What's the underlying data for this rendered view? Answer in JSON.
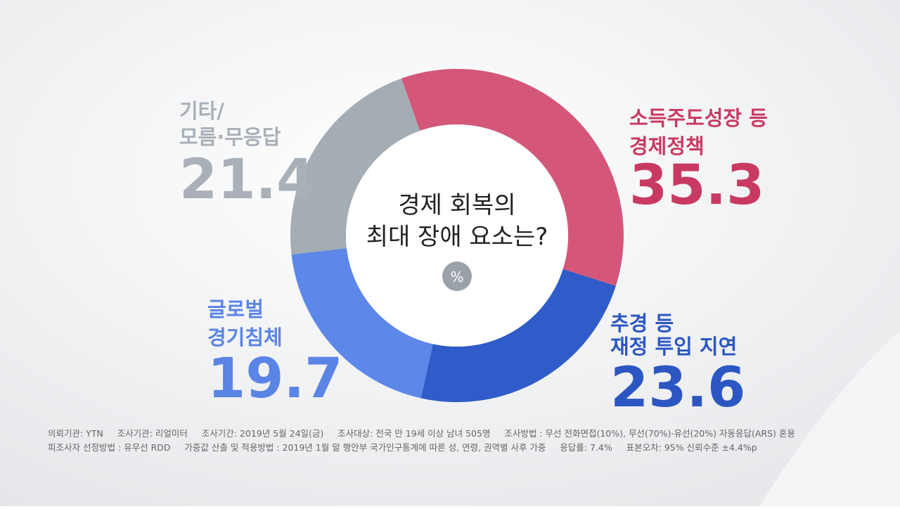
{
  "chart_data": {
    "type": "donut",
    "title": [
      "경제 회복의",
      "최대 장애 요소는?"
    ],
    "unit": "%",
    "categories": [
      [
        "소득주도성장 등",
        "경제정책"
      ],
      [
        "추경 등",
        "재정 투입 지연"
      ],
      [
        "글로벌",
        "경기침체"
      ],
      [
        "기타/",
        "모름·무응답"
      ]
    ],
    "values": [
      35.3,
      23.6,
      19.7,
      21.4
    ],
    "colors": [
      "#d4577a",
      "#2f5cc8",
      "#5d87e8",
      "#a4acb4"
    ],
    "label_colors": [
      "#c93a62",
      "#2c57c2",
      "#5a84e6",
      "#a9b0b8"
    ],
    "notes": [
      "의뢰기관: YTN     조사기관: 리얼미터     조사기간: 2019년 5월 24일(금)     조사대상: 전국 만 19세 이상 남녀 505명     조사방법 : 무선 전화면접(10%), 무선(70%)·유선(20%) 자동응답(ARS) 혼용",
      "피조사자 선정방법 : 유무선 RDD     가중값 산출 및 적용방법 : 2019년 1월 말 행안부 국가인구통계에 따른 성, 연령, 권역별 사후 가중     응답률: 7.4%     표본오차: 95% 신뢰수준 ±4.4%p"
    ]
  }
}
